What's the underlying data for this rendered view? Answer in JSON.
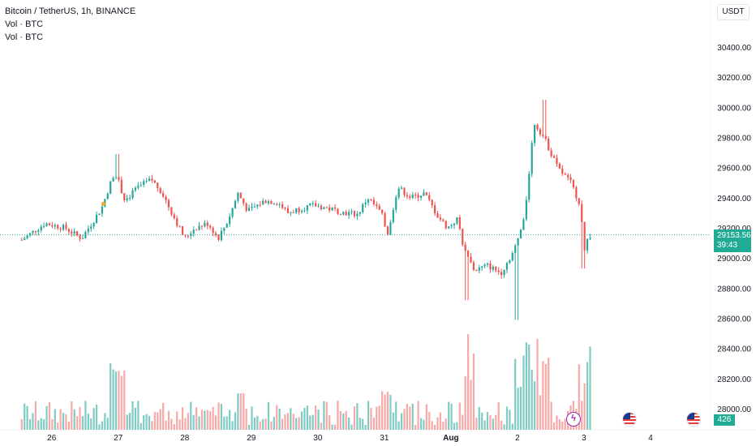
{
  "legend": {
    "symbol": "Bitcoin / TetherUS, 1h, BINANCE",
    "vol1": "Vol · BTC",
    "vol2": "Vol · BTC"
  },
  "toolbar": {
    "currency": "USDT"
  },
  "last_price": {
    "value": "29153.56",
    "countdown": "39:43",
    "volume": "426"
  },
  "icons": [
    "lightning-icon",
    "us-flag-icon",
    "us-flag-icon"
  ],
  "colors": {
    "up": "#26a69a",
    "down": "#ef5350",
    "vol_up": "#80cbc4",
    "vol_down": "#f7a9a7",
    "price_line": "#22ab94"
  },
  "chart_data": {
    "type": "candlestick",
    "title": "Bitcoin / TetherUS, 1h, BINANCE",
    "x_tick_labels": [
      "26",
      "27",
      "28",
      "29",
      "30",
      "31",
      "Aug",
      "2",
      "3",
      "4"
    ],
    "y_tick_labels": [
      "30400.00",
      "30200.00",
      "30000.00",
      "29800.00",
      "29600.00",
      "29400.00",
      "29200.00",
      "29000.00",
      "28800.00",
      "28600.00",
      "28400.00",
      "28200.00",
      "28000.00"
    ],
    "ylim": [
      27970,
      30530
    ],
    "x_range_days": [
      25.6,
      35.2
    ],
    "current_price": 29153.56,
    "close_keypoints": [
      [
        25.55,
        29120
      ],
      [
        25.9,
        29230
      ],
      [
        26.2,
        29200
      ],
      [
        26.45,
        29130
      ],
      [
        26.75,
        29330
      ],
      [
        26.95,
        29580
      ],
      [
        27.1,
        29380
      ],
      [
        27.3,
        29470
      ],
      [
        27.5,
        29520
      ],
      [
        27.65,
        29440
      ],
      [
        27.85,
        29260
      ],
      [
        28.0,
        29130
      ],
      [
        28.15,
        29200
      ],
      [
        28.35,
        29230
      ],
      [
        28.5,
        29130
      ],
      [
        28.65,
        29250
      ],
      [
        28.8,
        29430
      ],
      [
        28.95,
        29310
      ],
      [
        29.2,
        29380
      ],
      [
        29.4,
        29370
      ],
      [
        29.55,
        29300
      ],
      [
        29.75,
        29330
      ],
      [
        29.95,
        29350
      ],
      [
        30.15,
        29330
      ],
      [
        30.4,
        29300
      ],
      [
        30.6,
        29290
      ],
      [
        30.75,
        29400
      ],
      [
        30.95,
        29300
      ],
      [
        31.05,
        29170
      ],
      [
        31.2,
        29470
      ],
      [
        31.4,
        29400
      ],
      [
        31.6,
        29430
      ],
      [
        31.8,
        29280
      ],
      [
        31.95,
        29200
      ],
      [
        32.1,
        29260
      ],
      [
        32.2,
        29050
      ],
      [
        32.35,
        28920
      ],
      [
        32.55,
        28950
      ],
      [
        32.75,
        28900
      ],
      [
        32.95,
        29050
      ],
      [
        33.1,
        29250
      ],
      [
        33.25,
        29900
      ],
      [
        33.4,
        29800
      ],
      [
        33.6,
        29600
      ],
      [
        33.8,
        29500
      ],
      [
        33.95,
        29350
      ],
      [
        34.0,
        29050
      ],
      [
        34.05,
        29120
      ],
      [
        34.1,
        29153
      ]
    ],
    "volume_y_range": [
      0,
      5000
    ]
  }
}
